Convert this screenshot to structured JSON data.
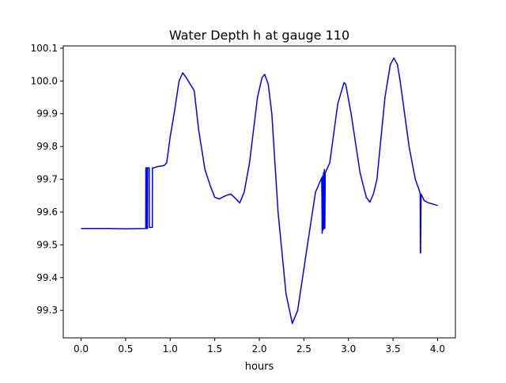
{
  "chart_data": {
    "type": "line",
    "title": "Water Depth h at gauge 110",
    "xlabel": "hours",
    "ylabel": "",
    "xlim": [
      -0.2,
      4.2
    ],
    "ylim": [
      99.216,
      100.107
    ],
    "xticks": [
      0.0,
      0.5,
      1.0,
      1.5,
      2.0,
      2.5,
      3.0,
      3.5,
      4.0
    ],
    "xtick_labels": [
      "0.0",
      "0.5",
      "1.0",
      "1.5",
      "2.0",
      "2.5",
      "3.0",
      "3.5",
      "4.0"
    ],
    "yticks": [
      99.3,
      99.4,
      99.5,
      99.6,
      99.7,
      99.8,
      99.9,
      100.0,
      100.1
    ],
    "ytick_labels": [
      "99.3",
      "99.4",
      "99.5",
      "99.6",
      "99.7",
      "99.8",
      "99.9",
      "100.0",
      "100.1"
    ],
    "grid": false,
    "series": [
      {
        "name": "h",
        "color": "#0000ff",
        "x": [
          0.0,
          0.3,
          0.5,
          0.725,
          0.727,
          0.73,
          0.732,
          0.735,
          0.737,
          0.74,
          0.742,
          0.745,
          0.747,
          0.75,
          0.76,
          0.765,
          0.766,
          0.78,
          0.8,
          0.801,
          0.815,
          0.816,
          0.85,
          0.93,
          0.96,
          1.0,
          1.05,
          1.1,
          1.14,
          1.18,
          1.27,
          1.32,
          1.39,
          1.45,
          1.5,
          1.55,
          1.62,
          1.68,
          1.72,
          1.78,
          1.83,
          1.89,
          1.98,
          2.03,
          2.06,
          2.1,
          2.14,
          2.21,
          2.3,
          2.37,
          2.43,
          2.54,
          2.63,
          2.7,
          2.705,
          2.71,
          2.715,
          2.72,
          2.725,
          2.73,
          2.735,
          2.74,
          2.79,
          2.88,
          2.95,
          2.97,
          3.03,
          3.13,
          3.2,
          3.24,
          3.28,
          3.32,
          3.41,
          3.47,
          3.51,
          3.55,
          3.58,
          3.68,
          3.75,
          3.79,
          3.805,
          3.807,
          3.81,
          3.815,
          3.85,
          3.9,
          4.0
        ],
        "y": [
          99.55,
          99.55,
          99.549,
          99.55,
          99.735,
          99.55,
          99.735,
          99.55,
          99.735,
          99.55,
          99.735,
          99.55,
          99.735,
          99.735,
          99.735,
          99.735,
          99.553,
          99.553,
          99.553,
          99.735,
          99.735,
          99.735,
          99.738,
          99.742,
          99.75,
          99.83,
          99.91,
          100.0,
          100.025,
          100.01,
          99.97,
          99.85,
          99.73,
          99.68,
          99.645,
          99.64,
          99.65,
          99.655,
          99.645,
          99.628,
          99.66,
          99.75,
          99.95,
          100.01,
          100.02,
          99.99,
          99.9,
          99.6,
          99.35,
          99.26,
          99.3,
          99.5,
          99.66,
          99.705,
          99.535,
          99.71,
          99.545,
          99.72,
          99.55,
          99.73,
          99.55,
          99.72,
          99.75,
          99.93,
          99.995,
          99.99,
          99.9,
          99.72,
          99.645,
          99.63,
          99.655,
          99.7,
          99.95,
          100.05,
          100.07,
          100.05,
          100.0,
          99.8,
          99.7,
          99.67,
          99.655,
          99.475,
          99.475,
          99.655,
          99.635,
          99.628,
          99.62
        ]
      }
    ]
  }
}
